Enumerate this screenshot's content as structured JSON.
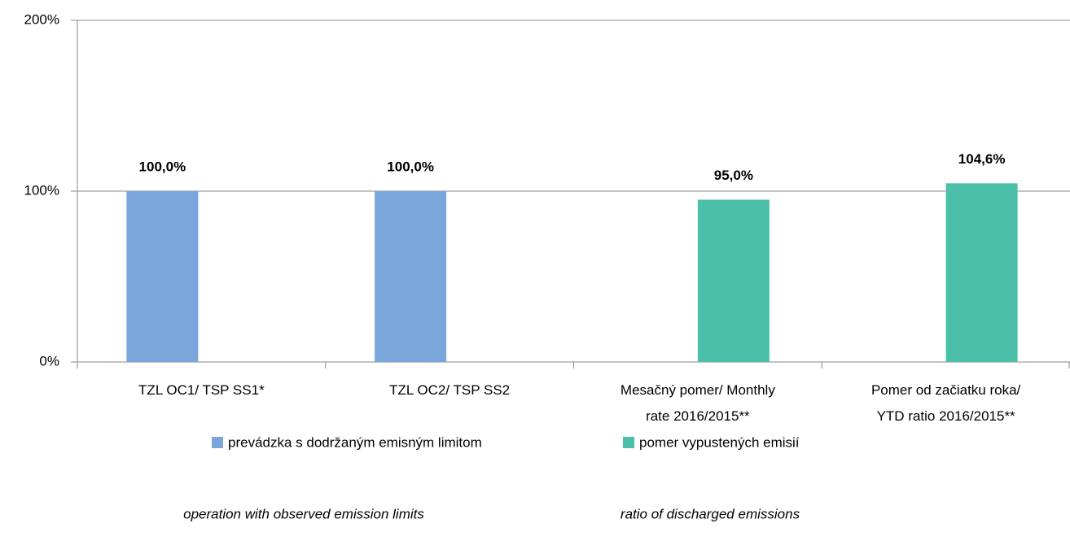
{
  "chart_data": {
    "type": "bar",
    "categories": [
      "TZL OC1/ TSP SS1*",
      "TZL OC2/ TSP SS2",
      "Mesačný pomer/ Monthly\nrate  2016/2015**",
      "Pomer  od začiatku roka/\nYTD ratio  2016/2015**"
    ],
    "series": [
      {
        "name": "prevádzka s dodržaným emisným limitom",
        "color": "#7aa6dc",
        "values": [
          100,
          100,
          null,
          null
        ],
        "value_labels": [
          "100,0%",
          "100,0%",
          null,
          null
        ]
      },
      {
        "name": "pomer vypustených emisií",
        "color": "#4bbfa8",
        "values": [
          null,
          null,
          95,
          104.6
        ],
        "value_labels": [
          null,
          null,
          "95,0%",
          "104,6%"
        ]
      }
    ],
    "ylim": [
      0,
      200
    ],
    "yticks": [
      {
        "value": 0,
        "label": "0%"
      },
      {
        "value": 100,
        "label": "100%"
      },
      {
        "value": 200,
        "label": "200%"
      }
    ],
    "grid": true,
    "annotations": [
      "operation with observed emission limits",
      "ratio of discharged emissions"
    ]
  }
}
